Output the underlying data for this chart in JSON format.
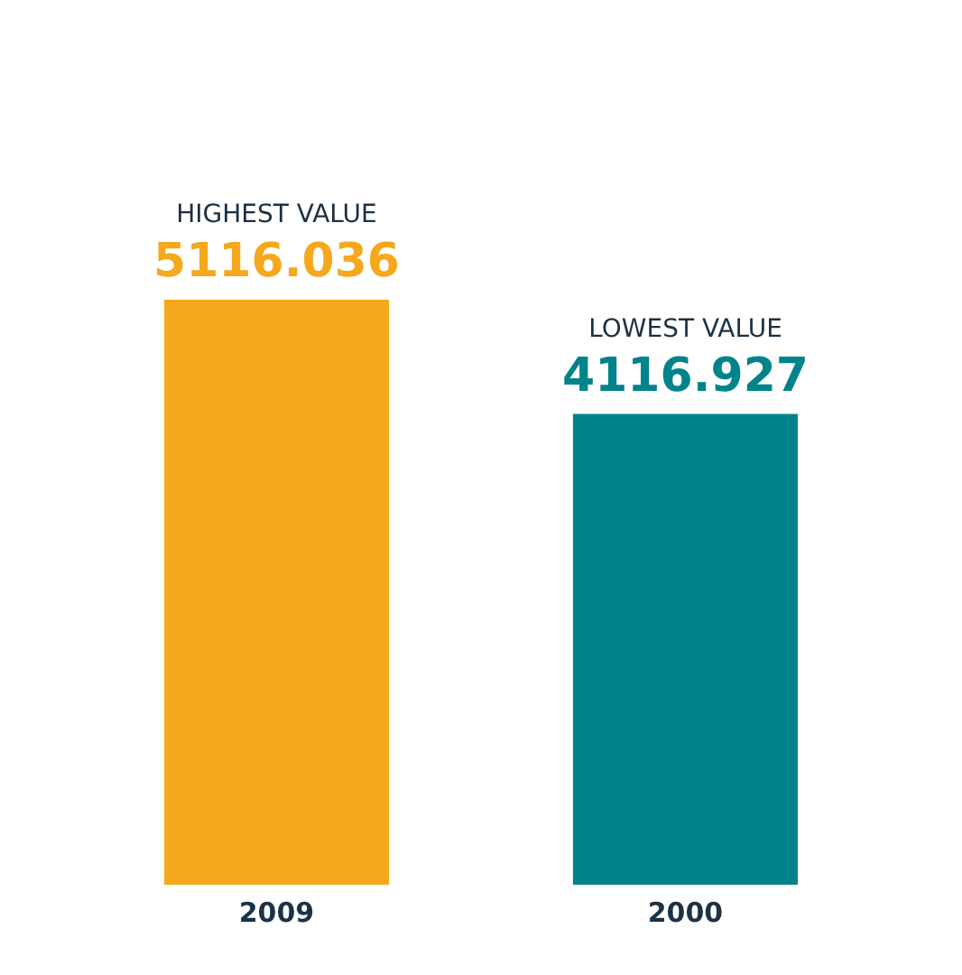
{
  "chart_data": {
    "type": "bar",
    "categories": [
      "2009",
      "2000"
    ],
    "values": [
      5116.036,
      4116.927
    ],
    "colors": [
      "#f5a81c",
      "#00838a"
    ],
    "data_labels": true,
    "annotations": [
      "HIGHEST VALUE",
      "LOWEST VALUE"
    ]
  }
}
